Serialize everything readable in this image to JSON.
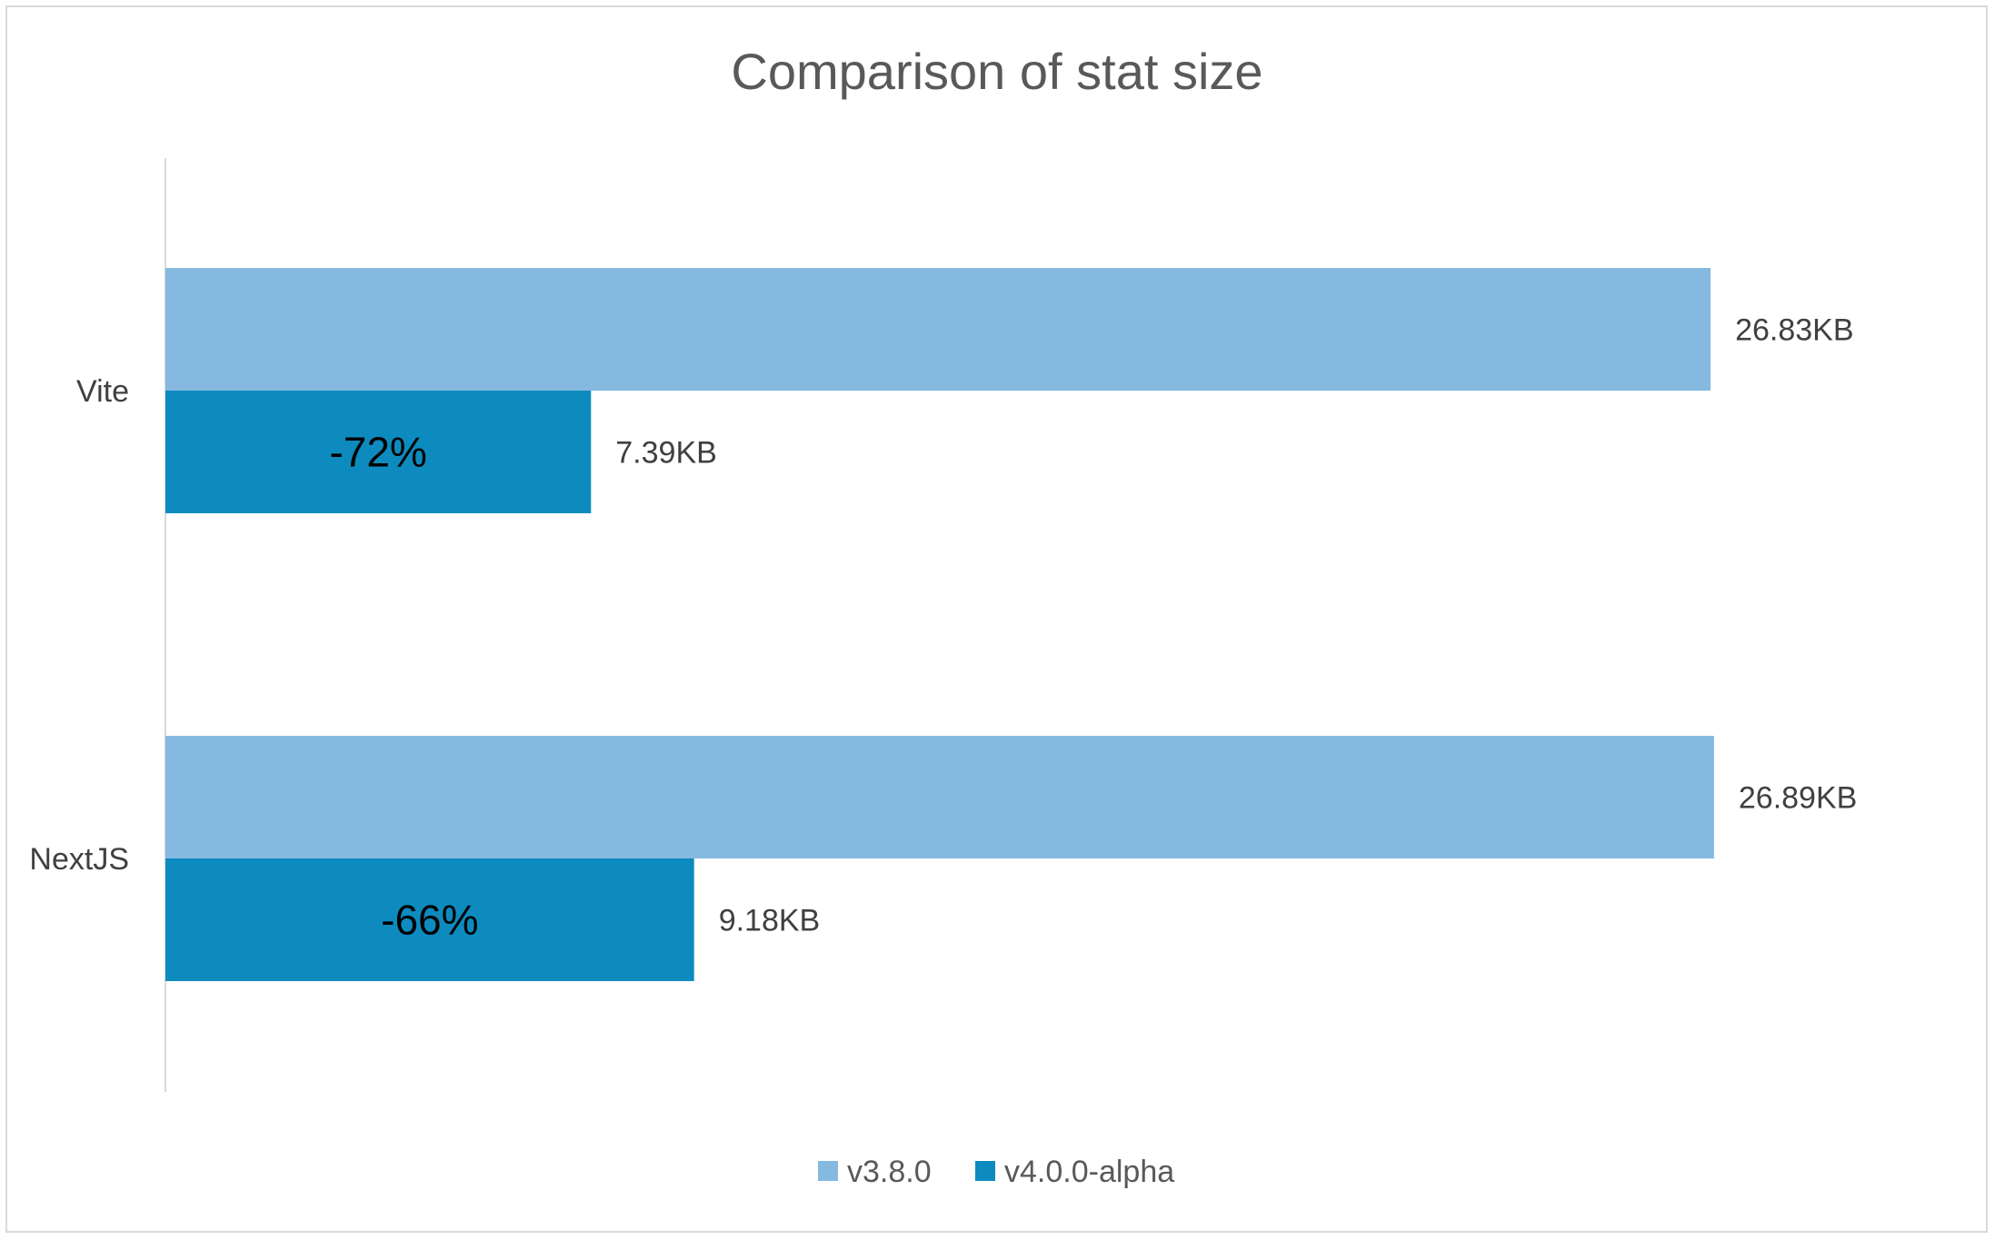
{
  "chart_data": {
    "type": "bar",
    "orientation": "horizontal",
    "title": "Comparison of stat size",
    "categories": [
      "Vite",
      "NextJS"
    ],
    "series": [
      {
        "name": "v3.8.0",
        "color": "#85b9e0",
        "values": [
          26.83,
          26.89
        ],
        "labels": [
          "26.83KB",
          "26.89KB"
        ]
      },
      {
        "name": "v4.0.0-alpha",
        "color": "#0d8bbf",
        "values": [
          7.39,
          9.18
        ],
        "labels": [
          "7.39KB",
          "9.18KB"
        ],
        "annotations": [
          "-72%",
          "-66%"
        ]
      }
    ],
    "xlim": [
      0,
      30
    ],
    "grid": false,
    "legend_position": "bottom",
    "unit": "KB"
  }
}
